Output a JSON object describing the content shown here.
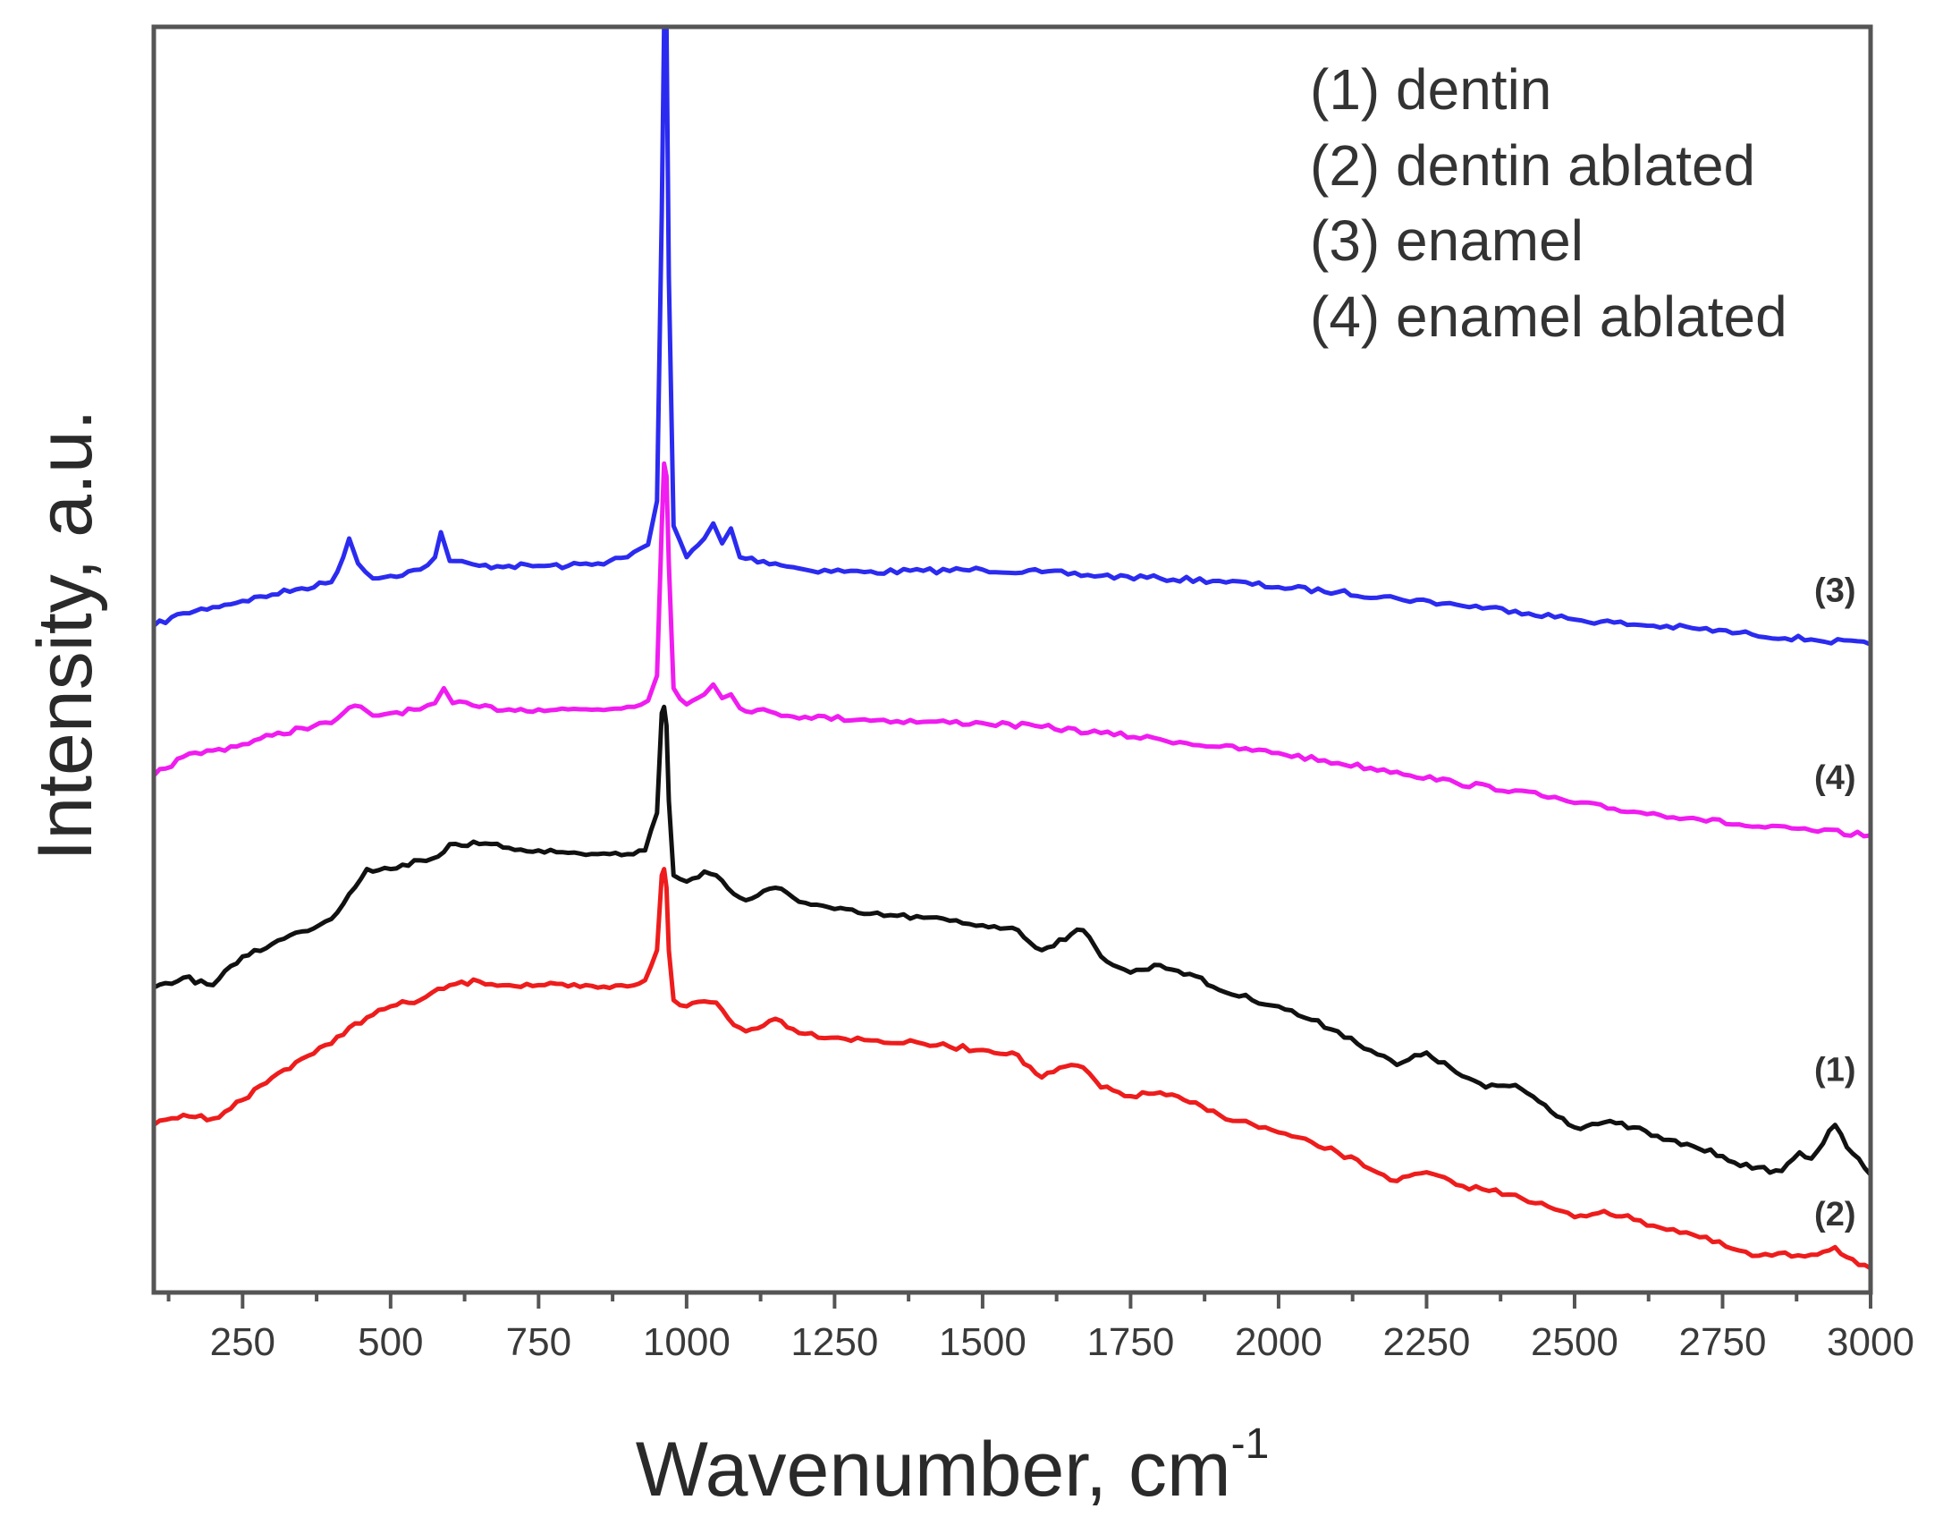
{
  "chart_data": {
    "type": "line",
    "title": "",
    "xlabel": "Wavenumber, cm",
    "xlabel_superscript": "-1",
    "ylabel": "Intensity, a.u.",
    "xlim": [
      100,
      3000
    ],
    "ylim": [
      0,
      100
    ],
    "x_ticks": [
      250,
      500,
      750,
      1000,
      1250,
      1500,
      1750,
      2000,
      2250,
      2500,
      2750,
      3000
    ],
    "y_ticks_shown": false,
    "legend": {
      "placement": "top-right",
      "entries": [
        "(1) dentin",
        "(2) dentin ablated",
        "(3) enamel",
        "(4) enamel ablated"
      ]
    },
    "series": [
      {
        "id": "3",
        "name": "(3) enamel",
        "label": "(3)",
        "color": "#2b2bf0",
        "points": [
          [
            100,
            52
          ],
          [
            150,
            53
          ],
          [
            200,
            53.5
          ],
          [
            250,
            54
          ],
          [
            300,
            54.5
          ],
          [
            350,
            55
          ],
          [
            400,
            55.5
          ],
          [
            420,
            57.5
          ],
          [
            430,
            59
          ],
          [
            445,
            57
          ],
          [
            470,
            55.8
          ],
          [
            500,
            56
          ],
          [
            550,
            56.5
          ],
          [
            575,
            57.5
          ],
          [
            585,
            59.5
          ],
          [
            600,
            57.2
          ],
          [
            650,
            56.8
          ],
          [
            700,
            56.8
          ],
          [
            750,
            56.8
          ],
          [
            800,
            56.8
          ],
          [
            850,
            57
          ],
          [
            900,
            57.5
          ],
          [
            935,
            58.5
          ],
          [
            950,
            62
          ],
          [
            958,
            85
          ],
          [
            962,
            100
          ],
          [
            966,
            100
          ],
          [
            970,
            80
          ],
          [
            978,
            60
          ],
          [
            1000,
            57.5
          ],
          [
            1030,
            59
          ],
          [
            1045,
            60.2
          ],
          [
            1060,
            58.6
          ],
          [
            1075,
            59.8
          ],
          [
            1090,
            57.5
          ],
          [
            1150,
            57
          ],
          [
            1200,
            56.5
          ],
          [
            1300,
            56.3
          ],
          [
            1400,
            56.4
          ],
          [
            1500,
            56.5
          ],
          [
            1600,
            56.3
          ],
          [
            1700,
            56
          ],
          [
            1800,
            55.8
          ],
          [
            1900,
            55.6
          ],
          [
            2000,
            55.1
          ],
          [
            2100,
            54.7
          ],
          [
            2200,
            54.2
          ],
          [
            2300,
            53.7
          ],
          [
            2400,
            53.2
          ],
          [
            2500,
            52.5
          ],
          [
            2600,
            52.1
          ],
          [
            2700,
            51.8
          ],
          [
            2800,
            51.3
          ],
          [
            2900,
            50.9
          ],
          [
            3000,
            50.5
          ]
        ]
      },
      {
        "id": "4",
        "name": "(4) enamel ablated",
        "label": "(4)",
        "color": "#f01cf0",
        "points": [
          [
            100,
            40
          ],
          [
            150,
            41.5
          ],
          [
            200,
            42
          ],
          [
            250,
            42.5
          ],
          [
            300,
            43.2
          ],
          [
            350,
            43.8
          ],
          [
            400,
            44.2
          ],
          [
            420,
            45
          ],
          [
            440,
            45.6
          ],
          [
            470,
            44.8
          ],
          [
            500,
            45
          ],
          [
            550,
            45.3
          ],
          [
            575,
            45.8
          ],
          [
            590,
            47
          ],
          [
            605,
            45.8
          ],
          [
            650,
            45.5
          ],
          [
            700,
            45.3
          ],
          [
            750,
            45.3
          ],
          [
            800,
            45.3
          ],
          [
            850,
            45.3
          ],
          [
            900,
            45.5
          ],
          [
            935,
            46
          ],
          [
            950,
            48
          ],
          [
            958,
            60
          ],
          [
            962,
            65
          ],
          [
            966,
            64
          ],
          [
            970,
            57
          ],
          [
            978,
            47
          ],
          [
            1000,
            45.7
          ],
          [
            1030,
            46.5
          ],
          [
            1045,
            47.3
          ],
          [
            1060,
            46.2
          ],
          [
            1075,
            46.5
          ],
          [
            1090,
            45.4
          ],
          [
            1150,
            45
          ],
          [
            1200,
            44.7
          ],
          [
            1300,
            44.5
          ],
          [
            1400,
            44.3
          ],
          [
            1500,
            44.2
          ],
          [
            1600,
            43.9
          ],
          [
            1700,
            43.4
          ],
          [
            1800,
            42.9
          ],
          [
            1900,
            42.3
          ],
          [
            2000,
            41.8
          ],
          [
            2100,
            41
          ],
          [
            2200,
            40.3
          ],
          [
            2300,
            39.4
          ],
          [
            2400,
            38.8
          ],
          [
            2500,
            37.8
          ],
          [
            2600,
            37.1
          ],
          [
            2700,
            36.6
          ],
          [
            2800,
            35.9
          ],
          [
            2900,
            35.6
          ],
          [
            3000,
            35.2
          ]
        ]
      },
      {
        "id": "1",
        "name": "(1) dentin",
        "label": "(1)",
        "color": "#111111",
        "points": [
          [
            100,
            23
          ],
          [
            150,
            23.8
          ],
          [
            200,
            23.2
          ],
          [
            250,
            25.5
          ],
          [
            300,
            26.5
          ],
          [
            350,
            27.5
          ],
          [
            400,
            28.5
          ],
          [
            430,
            30.5
          ],
          [
            460,
            32.5
          ],
          [
            500,
            32.5
          ],
          [
            550,
            33.2
          ],
          [
            580,
            33.5
          ],
          [
            600,
            34.5
          ],
          [
            650,
            34.5
          ],
          [
            700,
            34.2
          ],
          [
            750,
            34
          ],
          [
            800,
            33.8
          ],
          [
            850,
            33.7
          ],
          [
            900,
            33.7
          ],
          [
            930,
            34
          ],
          [
            950,
            37
          ],
          [
            958,
            45
          ],
          [
            962,
            45.5
          ],
          [
            966,
            44
          ],
          [
            970,
            38
          ],
          [
            978,
            32
          ],
          [
            1000,
            31.5
          ],
          [
            1030,
            32.3
          ],
          [
            1050,
            32
          ],
          [
            1080,
            30.5
          ],
          [
            1100,
            30
          ],
          [
            1150,
            31
          ],
          [
            1200,
            29.8
          ],
          [
            1250,
            29.3
          ],
          [
            1300,
            28.9
          ],
          [
            1400,
            28.6
          ],
          [
            1500,
            28
          ],
          [
            1550,
            27.8
          ],
          [
            1600,
            26
          ],
          [
            1650,
            27.3
          ],
          [
            1670,
            27.6
          ],
          [
            1700,
            25.5
          ],
          [
            1750,
            24.2
          ],
          [
            1800,
            24.8
          ],
          [
            1850,
            24.1
          ],
          [
            1900,
            22.8
          ],
          [
            2000,
            21.5
          ],
          [
            2100,
            19.5
          ],
          [
            2200,
            16.8
          ],
          [
            2250,
            17.8
          ],
          [
            2300,
            16.2
          ],
          [
            2350,
            15
          ],
          [
            2400,
            15.2
          ],
          [
            2450,
            13.6
          ],
          [
            2500,
            11.8
          ],
          [
            2550,
            12.2
          ],
          [
            2600,
            11.8
          ],
          [
            2650,
            10.8
          ],
          [
            2700,
            10.3
          ],
          [
            2750,
            9.5
          ],
          [
            2800,
            8.5
          ],
          [
            2850,
            8.3
          ],
          [
            2880,
            9.8
          ],
          [
            2900,
            9.3
          ],
          [
            2940,
            12
          ],
          [
            2960,
            10.2
          ],
          [
            2980,
            9.3
          ],
          [
            3000,
            8
          ]
        ]
      },
      {
        "id": "2",
        "name": "(2) dentin ablated",
        "label": "(2)",
        "color": "#ee1c1c",
        "points": [
          [
            100,
            12
          ],
          [
            150,
            12.8
          ],
          [
            200,
            12.5
          ],
          [
            250,
            14
          ],
          [
            300,
            15.8
          ],
          [
            350,
            17.3
          ],
          [
            400,
            18.5
          ],
          [
            430,
            19.8
          ],
          [
            460,
            20.6
          ],
          [
            500,
            21.5
          ],
          [
            550,
            22
          ],
          [
            600,
            23.2
          ],
          [
            650,
            23.5
          ],
          [
            700,
            23.2
          ],
          [
            750,
            23.2
          ],
          [
            800,
            23.1
          ],
          [
            850,
            23
          ],
          [
            900,
            23.1
          ],
          [
            930,
            23.6
          ],
          [
            950,
            26
          ],
          [
            958,
            32
          ],
          [
            962,
            32.5
          ],
          [
            966,
            31
          ],
          [
            970,
            26
          ],
          [
            978,
            22
          ],
          [
            1000,
            21.5
          ],
          [
            1030,
            21.9
          ],
          [
            1050,
            21.8
          ],
          [
            1080,
            20
          ],
          [
            1100,
            19.5
          ],
          [
            1150,
            20.5
          ],
          [
            1200,
            19.3
          ],
          [
            1300,
            18.8
          ],
          [
            1400,
            18.5
          ],
          [
            1500,
            18
          ],
          [
            1550,
            17.8
          ],
          [
            1600,
            15.8
          ],
          [
            1650,
            16.8
          ],
          [
            1670,
            16.6
          ],
          [
            1700,
            15
          ],
          [
            1750,
            14.3
          ],
          [
            1800,
            14.6
          ],
          [
            1850,
            13.8
          ],
          [
            1900,
            12.8
          ],
          [
            2000,
            11.4
          ],
          [
            2100,
            9.8
          ],
          [
            2200,
            7.5
          ],
          [
            2250,
            8.2
          ],
          [
            2300,
            7.2
          ],
          [
            2400,
            6.4
          ],
          [
            2500,
            4.6
          ],
          [
            2550,
            5.1
          ],
          [
            2600,
            4.4
          ],
          [
            2700,
            3.2
          ],
          [
            2800,
            1.5
          ],
          [
            2900,
            1.6
          ],
          [
            2940,
            2.2
          ],
          [
            2960,
            1.4
          ],
          [
            3000,
            0.5
          ]
        ]
      }
    ]
  }
}
